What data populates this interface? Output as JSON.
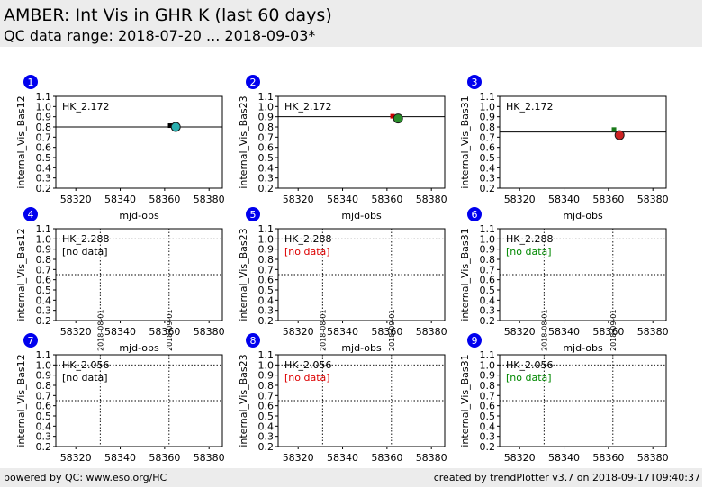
{
  "header": {
    "title": "AMBER: Int Vis in GHR K (last 60 days)",
    "subtitle": "QC data range: 2018-07-20 ... 2018-09-03*"
  },
  "footer": {
    "left": "powered by QC: www.eso.org/HC",
    "right": "created by trendPlotter v3.7 on 2018-09-17T09:40:37"
  },
  "chart_data": [
    {
      "type": "scatter",
      "number": "1",
      "hk": "HK_2.172",
      "ylabel": "internal_Vis_Bas12",
      "xlabel": "mjd-obs",
      "xlim": [
        58311,
        58386
      ],
      "ylim": [
        0.2,
        1.1
      ],
      "xticks": [
        58320,
        58340,
        58360,
        58380
      ],
      "yticks": [
        0.2,
        0.3,
        0.4,
        0.5,
        0.6,
        0.7,
        0.8,
        0.9,
        1.0,
        1.1
      ],
      "ref_line": 0.8,
      "ref_line_style": "solid",
      "threshold_lines": [],
      "vlines": [],
      "no_data": "",
      "no_data_color": "",
      "points": [
        {
          "x": 58362.5,
          "y": 0.813,
          "color": "#000000",
          "shape": "square"
        },
        {
          "x": 58365.0,
          "y": 0.8,
          "color": "#2ab0b0",
          "shape": "circle",
          "large": true
        }
      ]
    },
    {
      "type": "scatter",
      "number": "2",
      "hk": "HK_2.172",
      "ylabel": "internal_Vis_Bas23",
      "xlabel": "mjd-obs",
      "xlim": [
        58311,
        58386
      ],
      "ylim": [
        0.2,
        1.1
      ],
      "xticks": [
        58320,
        58340,
        58360,
        58380
      ],
      "yticks": [
        0.2,
        0.3,
        0.4,
        0.5,
        0.6,
        0.7,
        0.8,
        0.9,
        1.0,
        1.1
      ],
      "ref_line": 0.9,
      "ref_line_style": "solid",
      "threshold_lines": [],
      "vlines": [],
      "no_data": "",
      "no_data_color": "",
      "points": [
        {
          "x": 58362.5,
          "y": 0.905,
          "color": "#cc0000",
          "shape": "square"
        },
        {
          "x": 58365.0,
          "y": 0.883,
          "color": "#2a8c2a",
          "shape": "circle",
          "large": true
        }
      ]
    },
    {
      "type": "scatter",
      "number": "3",
      "hk": "HK_2.172",
      "ylabel": "internal_Vis_Bas31",
      "xlabel": "mjd-obs",
      "xlim": [
        58311,
        58386
      ],
      "ylim": [
        0.2,
        1.1
      ],
      "xticks": [
        58320,
        58340,
        58360,
        58380
      ],
      "yticks": [
        0.2,
        0.3,
        0.4,
        0.5,
        0.6,
        0.7,
        0.8,
        0.9,
        1.0,
        1.1
      ],
      "ref_line": 0.75,
      "ref_line_style": "solid",
      "threshold_lines": [],
      "vlines": [],
      "no_data": "",
      "no_data_color": "",
      "points": [
        {
          "x": 58362.5,
          "y": 0.775,
          "color": "#1a7a1a",
          "shape": "square"
        },
        {
          "x": 58365.0,
          "y": 0.72,
          "color": "#cc2222",
          "shape": "circle",
          "large": true
        }
      ]
    },
    {
      "type": "scatter",
      "number": "4",
      "hk": "HK_2.288",
      "ylabel": "internal_Vis_Bas12",
      "xlabel": "mjd-obs",
      "xlim": [
        58311,
        58386
      ],
      "ylim": [
        0.2,
        1.1
      ],
      "xticks": [
        58320,
        58340,
        58360,
        58380
      ],
      "yticks": [
        0.2,
        0.3,
        0.4,
        0.5,
        0.6,
        0.7,
        0.8,
        0.9,
        1.0,
        1.1
      ],
      "ref_line": null,
      "ref_line_style": "",
      "threshold_lines": [
        1.0,
        0.65
      ],
      "vlines": [
        {
          "x": 58331,
          "label": "2018-08-01"
        },
        {
          "x": 58362,
          "label": "2018-09-01"
        }
      ],
      "no_data": "[no data]",
      "no_data_color": "#000000",
      "points": []
    },
    {
      "type": "scatter",
      "number": "5",
      "hk": "HK_2.288",
      "ylabel": "internal_Vis_Bas23",
      "xlabel": "mjd-obs",
      "xlim": [
        58311,
        58386
      ],
      "ylim": [
        0.2,
        1.1
      ],
      "xticks": [
        58320,
        58340,
        58360,
        58380
      ],
      "yticks": [
        0.2,
        0.3,
        0.4,
        0.5,
        0.6,
        0.7,
        0.8,
        0.9,
        1.0,
        1.1
      ],
      "ref_line": null,
      "ref_line_style": "",
      "threshold_lines": [
        1.0,
        0.65
      ],
      "vlines": [
        {
          "x": 58331,
          "label": "2018-08-01"
        },
        {
          "x": 58362,
          "label": "2018-09-01"
        }
      ],
      "no_data": "[no data]",
      "no_data_color": "#dd0000",
      "points": []
    },
    {
      "type": "scatter",
      "number": "6",
      "hk": "HK_2.288",
      "ylabel": "internal_Vis_Bas31",
      "xlabel": "mjd-obs",
      "xlim": [
        58311,
        58386
      ],
      "ylim": [
        0.2,
        1.1
      ],
      "xticks": [
        58320,
        58340,
        58360,
        58380
      ],
      "yticks": [
        0.2,
        0.3,
        0.4,
        0.5,
        0.6,
        0.7,
        0.8,
        0.9,
        1.0,
        1.1
      ],
      "ref_line": null,
      "ref_line_style": "",
      "threshold_lines": [
        1.0,
        0.65
      ],
      "vlines": [
        {
          "x": 58331,
          "label": "2018-08-01"
        },
        {
          "x": 58362,
          "label": "2018-09-01"
        }
      ],
      "no_data": "[no data]",
      "no_data_color": "#008800",
      "points": []
    },
    {
      "type": "scatter",
      "number": "7",
      "hk": "HK_2.056",
      "ylabel": "internal_Vis_Bas12",
      "xlabel": "mjd-obs",
      "xlim": [
        58311,
        58386
      ],
      "ylim": [
        0.2,
        1.1
      ],
      "xticks": [
        58320,
        58340,
        58360,
        58380
      ],
      "yticks": [
        0.2,
        0.3,
        0.4,
        0.5,
        0.6,
        0.7,
        0.8,
        0.9,
        1.0,
        1.1
      ],
      "ref_line": null,
      "ref_line_style": "",
      "threshold_lines": [
        1.0,
        0.65
      ],
      "vlines": [
        {
          "x": 58331,
          "label": ""
        },
        {
          "x": 58362,
          "label": ""
        }
      ],
      "no_data": "[no data]",
      "no_data_color": "#000000",
      "points": []
    },
    {
      "type": "scatter",
      "number": "8",
      "hk": "HK_2.056",
      "ylabel": "internal_Vis_Bas23",
      "xlabel": "mjd-obs",
      "xlim": [
        58311,
        58386
      ],
      "ylim": [
        0.2,
        1.1
      ],
      "xticks": [
        58320,
        58340,
        58360,
        58380
      ],
      "yticks": [
        0.2,
        0.3,
        0.4,
        0.5,
        0.6,
        0.7,
        0.8,
        0.9,
        1.0,
        1.1
      ],
      "ref_line": null,
      "ref_line_style": "",
      "threshold_lines": [
        1.0,
        0.65
      ],
      "vlines": [
        {
          "x": 58331,
          "label": ""
        },
        {
          "x": 58362,
          "label": ""
        }
      ],
      "no_data": "[no data]",
      "no_data_color": "#dd0000",
      "points": []
    },
    {
      "type": "scatter",
      "number": "9",
      "hk": "HK_2.056",
      "ylabel": "internal_Vis_Bas31",
      "xlabel": "mjd-obs",
      "xlim": [
        58311,
        58386
      ],
      "ylim": [
        0.2,
        1.1
      ],
      "xticks": [
        58320,
        58340,
        58360,
        58380
      ],
      "yticks": [
        0.2,
        0.3,
        0.4,
        0.5,
        0.6,
        0.7,
        0.8,
        0.9,
        1.0,
        1.1
      ],
      "ref_line": null,
      "ref_line_style": "",
      "threshold_lines": [
        1.0,
        0.65
      ],
      "vlines": [
        {
          "x": 58331,
          "label": ""
        },
        {
          "x": 58362,
          "label": ""
        }
      ],
      "no_data": "[no data]",
      "no_data_color": "#008800",
      "points": []
    }
  ]
}
